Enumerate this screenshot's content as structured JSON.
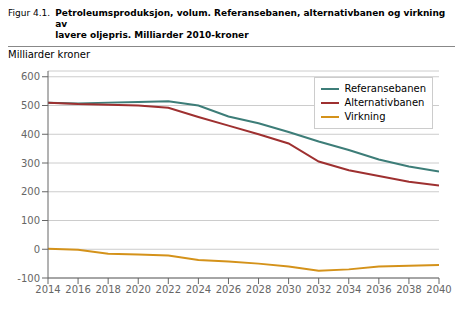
{
  "chart_data": {
    "type": "line",
    "title": "Figur 4.1.",
    "subtitle": "Petroleumsproduksjon, volum. Referansebanen, alternativbanen og virkning av\nlavere oljepris. Milliarder 2010-kroner",
    "ylabel": "Milliarder kroner",
    "x": [
      2014,
      2016,
      2018,
      2020,
      2022,
      2024,
      2026,
      2028,
      2030,
      2032,
      2034,
      2036,
      2038,
      2040
    ],
    "series": [
      {
        "name": "Referansebanen",
        "color": "#3d7d78",
        "values": [
          510,
          507,
          510,
          512,
          515,
          500,
          462,
          438,
          408,
          375,
          345,
          312,
          288,
          270
        ]
      },
      {
        "name": "Alternativbanen",
        "color": "#9e3030",
        "values": [
          510,
          505,
          503,
          500,
          492,
          460,
          430,
          400,
          368,
          305,
          275,
          255,
          235,
          222
        ]
      },
      {
        "name": "Virkning",
        "color": "#d4921a",
        "values": [
          2,
          -2,
          -16,
          -18,
          -22,
          -37,
          -43,
          -50,
          -60,
          -75,
          -70,
          -60,
          -57,
          -55
        ]
      }
    ],
    "xlim": [
      2014,
      2040
    ],
    "ylim": [
      -100,
      620
    ],
    "xticks": [
      2014,
      2016,
      2018,
      2020,
      2022,
      2024,
      2026,
      2028,
      2030,
      2032,
      2034,
      2036,
      2038,
      2040
    ],
    "yticks": [
      -100,
      0,
      100,
      200,
      300,
      400,
      500,
      600
    ],
    "grid": true,
    "legend": "upper right"
  }
}
